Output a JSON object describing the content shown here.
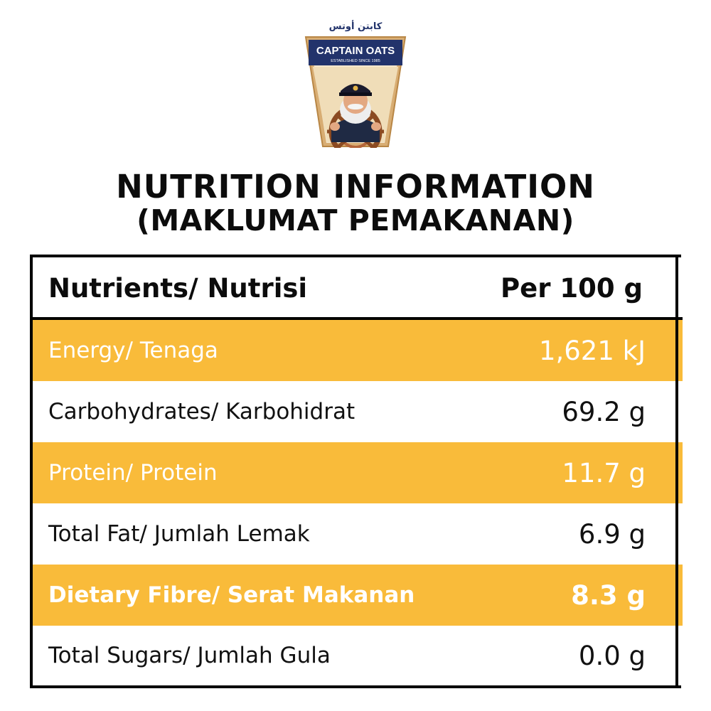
{
  "logo": {
    "arabic_text": "كابتن أوتس",
    "brand_name": "CAPTAIN OATS",
    "tagline": "ESTABLISHED SINCE 1985"
  },
  "title": {
    "line1": "NUTRITION INFORMATION",
    "line2": "(MAKLUMAT PEMAKANAN)"
  },
  "table": {
    "header": {
      "nutrient": "Nutrients/ Nutrisi",
      "per": "Per 100 g"
    },
    "rows": [
      {
        "label": "Energy/ Tenaga",
        "value": "1,621 kJ"
      },
      {
        "label": "Carbohydrates/ Karbohidrat",
        "value": "69.2 g"
      },
      {
        "label": "Protein/ Protein",
        "value": "11.7 g"
      },
      {
        "label": "Total Fat/ Jumlah Lemak",
        "value": "6.9 g"
      },
      {
        "label": "Dietary Fibre/ Serat Makanan",
        "value": "8.3 g"
      },
      {
        "label": "Total Sugars/ Jumlah Gula",
        "value": "0.0 g"
      }
    ]
  },
  "colors": {
    "highlight": "#f9bb3a",
    "logo_blue": "#22336b",
    "logo_frame": "#c79a5b"
  }
}
